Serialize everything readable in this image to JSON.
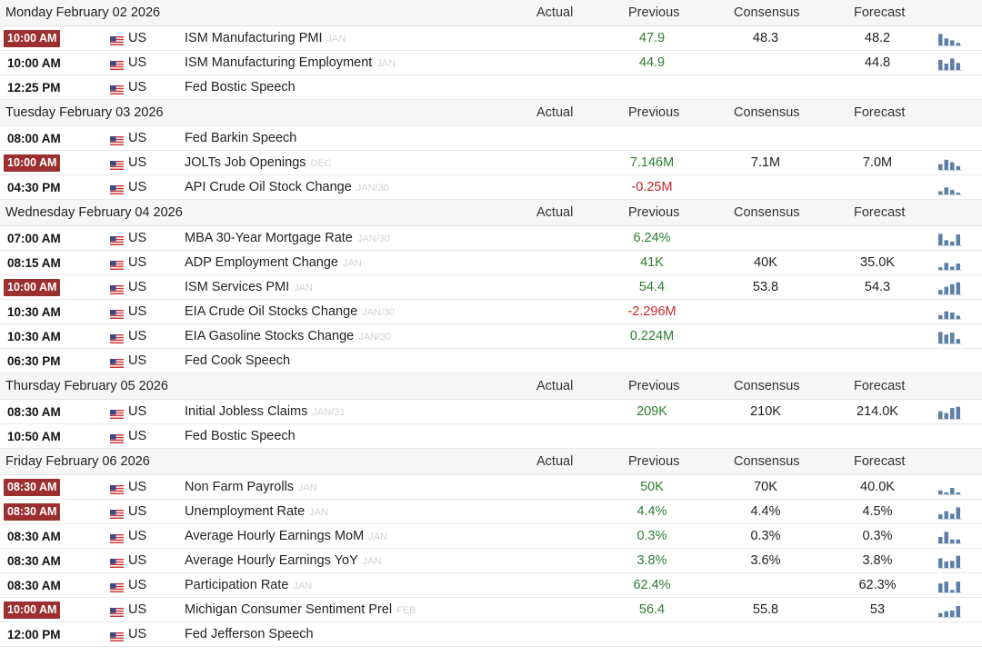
{
  "columns": {
    "actual": "Actual",
    "previous": "Previous",
    "consensus": "Consensus",
    "forecast": "Forecast"
  },
  "days": [
    {
      "date": "Monday February 02 2026",
      "events": [
        {
          "time": "10:00 AM",
          "high": true,
          "country": "US",
          "name": "ISM Manufacturing PMI",
          "ref": "JAN",
          "previous": "47.9",
          "prev_color": "pos",
          "consensus": "48.3",
          "forecast": "48.2",
          "spark": [
            0.9,
            0.55,
            0.4,
            0.2
          ]
        },
        {
          "time": "10:00 AM",
          "high": false,
          "country": "US",
          "name": "ISM Manufacturing Employment",
          "ref": "JAN",
          "previous": "44.9",
          "prev_color": "pos",
          "consensus": "",
          "forecast": "44.8",
          "spark": [
            0.8,
            0.5,
            0.9,
            0.55
          ]
        },
        {
          "time": "12:25 PM",
          "high": false,
          "country": "US",
          "name": "Fed Bostic Speech",
          "ref": "",
          "previous": "",
          "prev_color": "",
          "consensus": "",
          "forecast": "",
          "spark": []
        }
      ]
    },
    {
      "date": "Tuesday February 03 2026",
      "events": [
        {
          "time": "08:00 AM",
          "high": false,
          "country": "US",
          "name": "Fed Barkin Speech",
          "ref": "",
          "previous": "",
          "prev_color": "",
          "consensus": "",
          "forecast": "",
          "spark": []
        },
        {
          "time": "10:00 AM",
          "high": true,
          "country": "US",
          "name": "JOLTs Job Openings",
          "ref": "DEC",
          "previous": "7.146M",
          "prev_color": "pos",
          "consensus": "7.1M",
          "forecast": "7.0M",
          "spark": [
            0.45,
            0.8,
            0.6,
            0.3
          ]
        },
        {
          "time": "04:30 PM",
          "high": false,
          "country": "US",
          "name": "API Crude Oil Stock Change",
          "ref": "JAN/30",
          "previous": "-0.25M",
          "prev_color": "neg",
          "consensus": "",
          "forecast": "",
          "spark": [
            0.25,
            0.55,
            0.35,
            0.0
          ]
        }
      ]
    },
    {
      "date": "Wednesday February 04 2026",
      "events": [
        {
          "time": "07:00 AM",
          "high": false,
          "country": "US",
          "name": "MBA 30-Year Mortgage Rate",
          "ref": "JAN/30",
          "previous": "6.24%",
          "prev_color": "pos",
          "consensus": "",
          "forecast": "",
          "spark": [
            0.9,
            0.4,
            0.3,
            0.85
          ]
        },
        {
          "time": "08:15 AM",
          "high": false,
          "country": "US",
          "name": "ADP Employment Change",
          "ref": "JAN",
          "previous": "41K",
          "prev_color": "pos",
          "consensus": "40K",
          "forecast": "35.0K",
          "spark": [
            0.2,
            0.55,
            0.25,
            0.5
          ]
        },
        {
          "time": "10:00 AM",
          "high": true,
          "country": "US",
          "name": "ISM Services PMI",
          "ref": "JAN",
          "previous": "54.4",
          "prev_color": "pos",
          "consensus": "53.8",
          "forecast": "54.3",
          "spark": [
            0.35,
            0.6,
            0.8,
            0.95
          ]
        },
        {
          "time": "10:30 AM",
          "high": false,
          "country": "US",
          "name": "EIA Crude Oil Stocks Change",
          "ref": "JAN/30",
          "previous": "-2.296M",
          "prev_color": "neg",
          "consensus": "",
          "forecast": "",
          "spark": [
            0.3,
            0.6,
            0.5,
            0.25
          ]
        },
        {
          "time": "10:30 AM",
          "high": false,
          "country": "US",
          "name": "EIA Gasoline Stocks Change",
          "ref": "JAN/30",
          "previous": "0.224M",
          "prev_color": "pos",
          "consensus": "",
          "forecast": "",
          "spark": [
            0.9,
            0.7,
            0.85,
            0.35
          ]
        },
        {
          "time": "06:30 PM",
          "high": false,
          "country": "US",
          "name": "Fed Cook Speech",
          "ref": "",
          "previous": "",
          "prev_color": "",
          "consensus": "",
          "forecast": "",
          "spark": []
        }
      ]
    },
    {
      "date": "Thursday February 05 2026",
      "events": [
        {
          "time": "08:30 AM",
          "high": false,
          "country": "US",
          "name": "Initial Jobless Claims",
          "ref": "JAN/31",
          "previous": "209K",
          "prev_color": "pos",
          "consensus": "210K",
          "forecast": "214.0K",
          "spark": [
            0.6,
            0.45,
            0.85,
            0.95
          ]
        },
        {
          "time": "10:50 AM",
          "high": false,
          "country": "US",
          "name": "Fed Bostic Speech",
          "ref": "",
          "previous": "",
          "prev_color": "",
          "consensus": "",
          "forecast": "",
          "spark": []
        }
      ]
    },
    {
      "date": "Friday February 06 2026",
      "events": [
        {
          "time": "08:30 AM",
          "high": true,
          "country": "US",
          "name": "Non Farm Payrolls",
          "ref": "JAN",
          "previous": "50K",
          "prev_color": "pos",
          "consensus": "70K",
          "forecast": "40.0K",
          "spark": [
            0.3,
            0.15,
            0.5,
            0.15
          ]
        },
        {
          "time": "08:30 AM",
          "high": true,
          "country": "US",
          "name": "Unemployment Rate",
          "ref": "JAN",
          "previous": "4.4%",
          "prev_color": "pos",
          "consensus": "4.4%",
          "forecast": "4.5%",
          "spark": [
            0.35,
            0.6,
            0.4,
            0.9
          ]
        },
        {
          "time": "08:30 AM",
          "high": false,
          "country": "US",
          "name": "Average Hourly Earnings MoM",
          "ref": "JAN",
          "previous": "0.3%",
          "prev_color": "pos",
          "consensus": "0.3%",
          "forecast": "0.3%",
          "spark": [
            0.5,
            0.9,
            0.3,
            0.3
          ]
        },
        {
          "time": "08:30 AM",
          "high": false,
          "country": "US",
          "name": "Average Hourly Earnings YoY",
          "ref": "JAN",
          "previous": "3.8%",
          "prev_color": "pos",
          "consensus": "3.6%",
          "forecast": "3.8%",
          "spark": [
            0.75,
            0.5,
            0.55,
            0.95
          ]
        },
        {
          "time": "08:30 AM",
          "high": false,
          "country": "US",
          "name": "Participation Rate",
          "ref": "JAN",
          "previous": "62.4%",
          "prev_color": "pos",
          "consensus": "",
          "forecast": "62.3%",
          "spark": [
            0.7,
            0.85,
            0.2,
            0.85
          ]
        },
        {
          "time": "10:00 AM",
          "high": true,
          "country": "US",
          "name": "Michigan Consumer Sentiment Prel",
          "ref": "FEB",
          "previous": "56.4",
          "prev_color": "pos",
          "consensus": "55.8",
          "forecast": "53",
          "spark": [
            0.3,
            0.45,
            0.5,
            0.85
          ]
        },
        {
          "time": "12:00 PM",
          "high": false,
          "country": "US",
          "name": "Fed Jefferson Speech",
          "ref": "",
          "previous": "",
          "prev_color": "",
          "consensus": "",
          "forecast": "",
          "spark": []
        }
      ]
    }
  ]
}
